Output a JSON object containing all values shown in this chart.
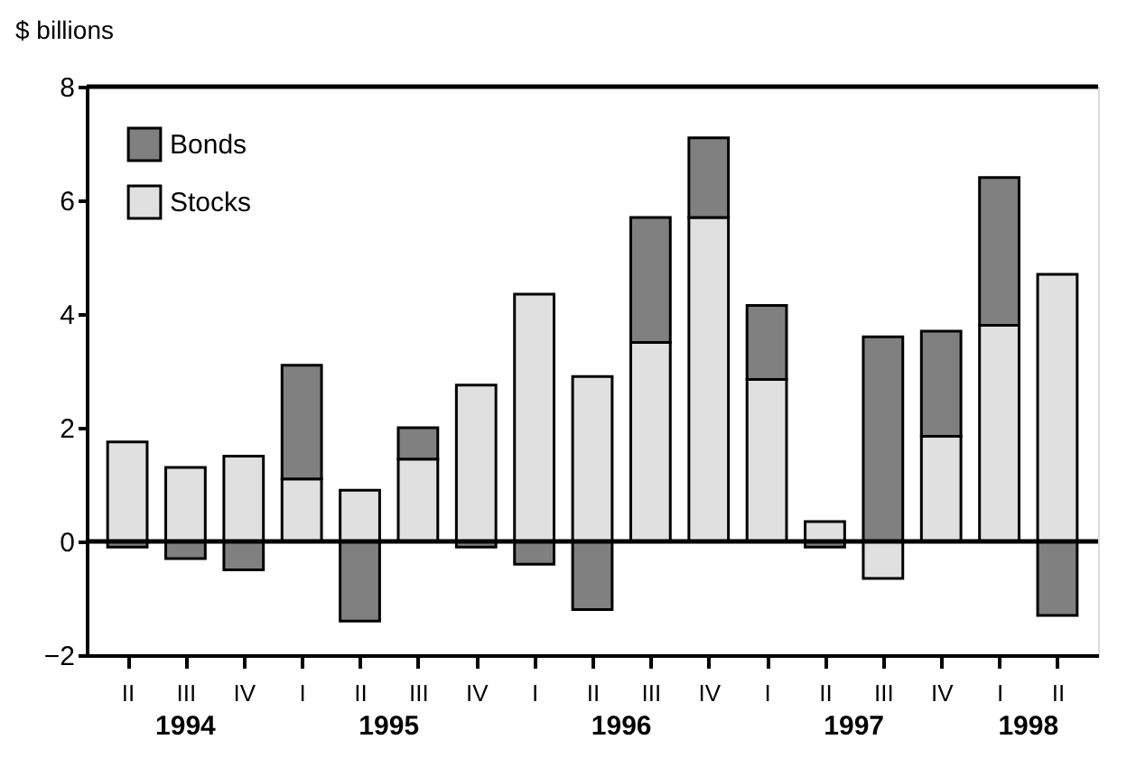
{
  "chart_data": {
    "type": "bar",
    "stacked": true,
    "ylabel": "$ billions",
    "categories": [
      "II",
      "III",
      "IV",
      "I",
      "II",
      "III",
      "IV",
      "I",
      "II",
      "III",
      "IV",
      "I",
      "II",
      "III",
      "IV",
      "I",
      "II"
    ],
    "series": [
      {
        "name": "Stocks",
        "color": "#e0e0e0",
        "values": [
          1.75,
          1.3,
          1.5,
          1.1,
          0.9,
          1.45,
          2.75,
          4.35,
          2.9,
          3.5,
          5.7,
          2.85,
          0.35,
          -0.65,
          1.85,
          3.8,
          4.7
        ]
      },
      {
        "name": "Bonds",
        "color": "#808080",
        "values": [
          -0.1,
          -0.3,
          -0.5,
          2.0,
          -1.4,
          0.55,
          -0.1,
          -0.4,
          -1.2,
          2.2,
          1.4,
          1.3,
          -0.1,
          3.6,
          1.85,
          2.6,
          -1.3
        ]
      }
    ],
    "annotations": [
      "1994",
      "1995",
      "1996",
      "1997",
      "1998"
    ],
    "ref_lines": [
      {
        "axis": "y",
        "value": 0,
        "color": "#000000"
      }
    ],
    "ylim": [
      -2,
      8
    ],
    "yticks": [
      -2,
      0,
      2,
      4,
      6,
      8
    ],
    "legend": "top left",
    "grid": false
  }
}
